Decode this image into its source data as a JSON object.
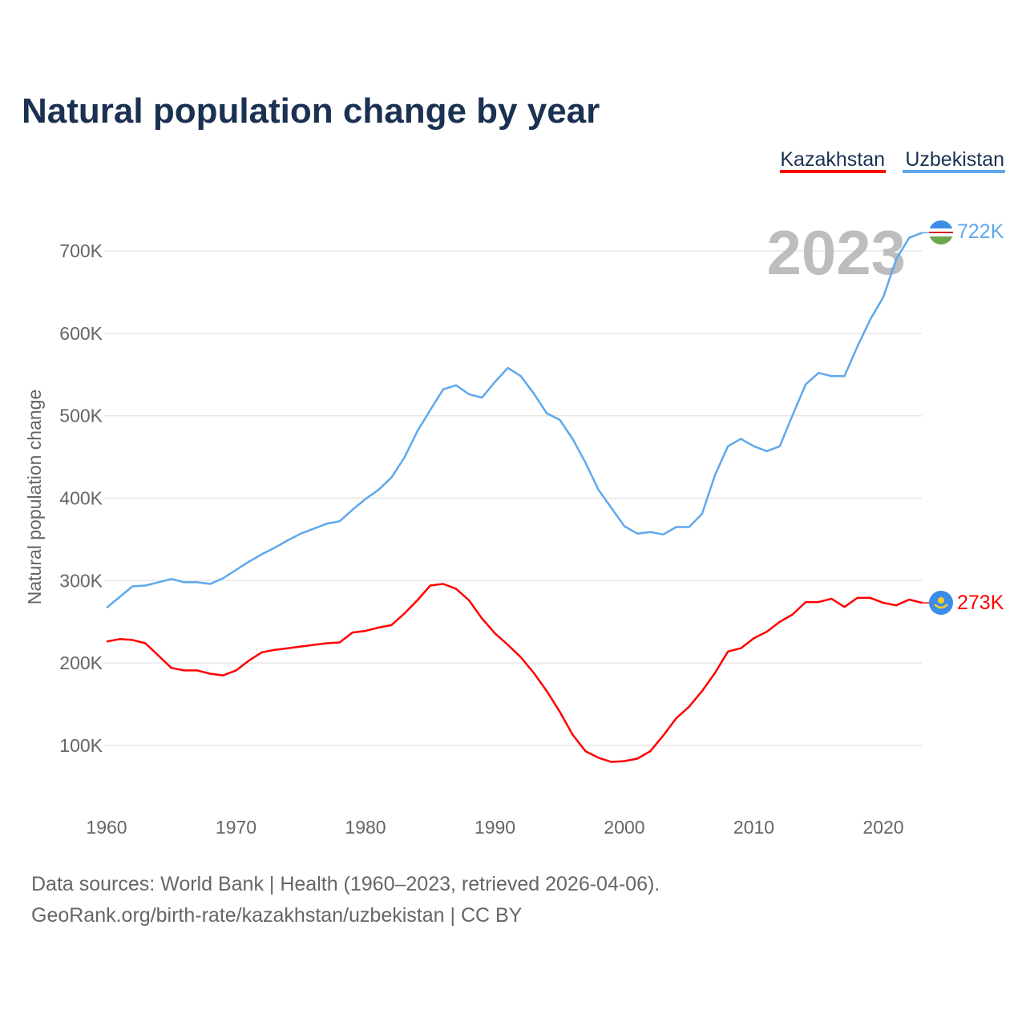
{
  "chart_data": {
    "type": "line",
    "title": "Natural population change by year",
    "xlabel": "",
    "ylabel": "Natural population change",
    "xlim": [
      1960,
      2023
    ],
    "ylim": [
      30000,
      760000
    ],
    "grid": true,
    "legend_placement": "top-right",
    "year_watermark": "2023",
    "x_ticks": [
      1960,
      1970,
      1980,
      1990,
      2000,
      2010,
      2020
    ],
    "y_ticks": [
      100000,
      200000,
      300000,
      400000,
      500000,
      600000,
      700000
    ],
    "y_tick_labels": [
      "100K",
      "200K",
      "300K",
      "400K",
      "500K",
      "600K",
      "700K"
    ],
    "x": [
      1960,
      1961,
      1962,
      1963,
      1964,
      1965,
      1966,
      1967,
      1968,
      1969,
      1970,
      1971,
      1972,
      1973,
      1974,
      1975,
      1976,
      1977,
      1978,
      1979,
      1980,
      1981,
      1982,
      1983,
      1984,
      1985,
      1986,
      1987,
      1988,
      1989,
      1990,
      1991,
      1992,
      1993,
      1994,
      1995,
      1996,
      1997,
      1998,
      1999,
      2000,
      2001,
      2002,
      2003,
      2004,
      2005,
      2006,
      2007,
      2008,
      2009,
      2010,
      2011,
      2012,
      2013,
      2014,
      2015,
      2016,
      2017,
      2018,
      2019,
      2020,
      2021,
      2022,
      2023
    ],
    "series": [
      {
        "name": "Kazakhstan",
        "color": "#ff0000",
        "end_label": "273K",
        "flag": "kazakhstan-flag",
        "values": [
          226,
          229,
          228,
          224,
          209,
          194,
          191,
          191,
          187,
          185,
          191,
          203,
          213,
          216,
          218,
          220,
          222,
          224,
          225,
          237,
          239,
          243,
          246,
          260,
          276,
          294,
          296,
          290,
          276,
          254,
          236,
          222,
          207,
          188,
          166,
          141,
          113,
          93,
          85,
          80,
          81,
          84,
          93,
          112,
          133,
          147,
          166,
          188,
          214,
          218,
          230,
          238,
          250,
          259,
          274,
          274,
          278,
          268,
          279,
          279,
          273,
          270,
          277,
          273
        ]
      },
      {
        "name": "Uzbekistan",
        "color": "#5fa8ec",
        "end_label": "722K",
        "flag": "uzbekistan-flag",
        "values": [
          267,
          280,
          293,
          294,
          298,
          302,
          298,
          298,
          296,
          303,
          313,
          323,
          332,
          340,
          349,
          357,
          363,
          369,
          372,
          386,
          399,
          410,
          425,
          449,
          481,
          507,
          532,
          537,
          526,
          522,
          541,
          558,
          548,
          527,
          503,
          495,
          472,
          443,
          410,
          388,
          366,
          357,
          359,
          356,
          365,
          365,
          381,
          428,
          463,
          472,
          463,
          457,
          463,
          501,
          538,
          552,
          548,
          548,
          584,
          617,
          644,
          690,
          716,
          722
        ]
      }
    ],
    "values_unit": "thousands",
    "footer": {
      "line1": "Data sources: World Bank | Health (1960–2023, retrieved 2026-04-06).",
      "line2": "GeoRank.org/birth-rate/kazakhstan/uzbekistan | CC BY"
    }
  }
}
